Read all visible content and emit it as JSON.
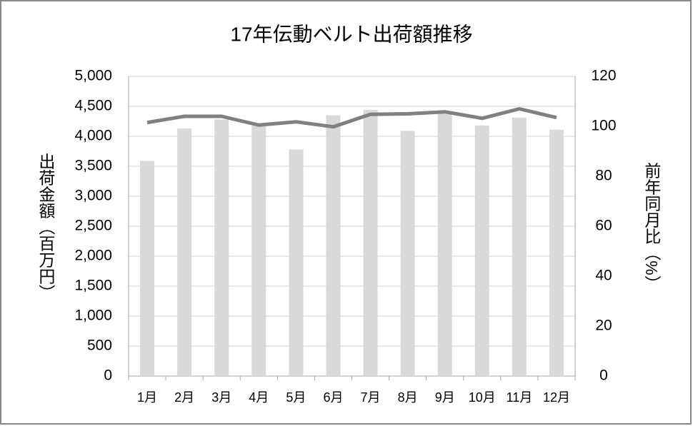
{
  "chart_data": {
    "type": "combo",
    "title": "17年伝動ベルト出荷額推移",
    "y_label": "出荷金額（百万円）",
    "y2_label": "前年同月比（%）",
    "categories": [
      "1月",
      "2月",
      "3月",
      "4月",
      "5月",
      "6月",
      "7月",
      "8月",
      "9月",
      "10月",
      "11月",
      "12月"
    ],
    "series": [
      {
        "type": "bar",
        "color": "#d9d9d9",
        "values": [
          3590,
          4130,
          4280,
          4200,
          3780,
          4350,
          4440,
          4090,
          4380,
          4180,
          4310,
          4110
        ]
      },
      {
        "type": "line",
        "axis": "y2",
        "color": "#808080",
        "values": [
          101.5,
          104,
          104,
          100.5,
          101.8,
          99.8,
          104.8,
          105,
          105.8,
          103.2,
          107,
          103.5
        ]
      }
    ],
    "ylim": [
      0,
      5000
    ],
    "yticks": [
      0,
      500,
      {
        "value": 1000,
        "label": "1,000"
      },
      {
        "value": 1500,
        "label": "1,500"
      },
      {
        "value": 2000,
        "label": "2,000"
      },
      {
        "value": 2500,
        "label": "2,500"
      },
      {
        "value": 3000,
        "label": "3,000"
      },
      {
        "value": 3500,
        "label": "3,500"
      },
      {
        "value": 4000,
        "label": "4,000"
      },
      {
        "value": 4500,
        "label": "4,500"
      },
      {
        "value": 5000,
        "label": "5,000"
      }
    ],
    "y2lim": [
      0,
      120
    ],
    "y2ticks": [
      0,
      20,
      40,
      60,
      80,
      100,
      120
    ],
    "grid": true
  }
}
